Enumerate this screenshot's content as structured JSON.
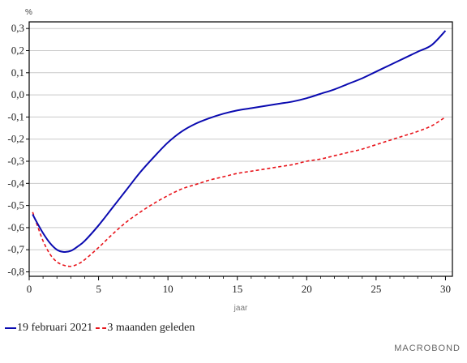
{
  "chart_data": {
    "type": "line",
    "title": "",
    "xlabel": "jaar",
    "ylabel": "%",
    "xlim": [
      0,
      30.5
    ],
    "ylim": [
      -0.82,
      0.33
    ],
    "x_ticks": [
      0,
      5,
      10,
      15,
      20,
      25,
      30
    ],
    "x_tick_labels": [
      "0",
      "5",
      "10",
      "15",
      "20",
      "25",
      "30"
    ],
    "y_ticks": [
      -0.8,
      -0.7,
      -0.6,
      -0.5,
      -0.4,
      -0.3,
      -0.2,
      -0.1,
      0.0,
      0.1,
      0.2,
      0.3
    ],
    "y_tick_labels": [
      "-0,8",
      "-0,7",
      "-0,6",
      "-0,5",
      "-0,4",
      "-0,3",
      "-0,2",
      "-0,1",
      "0,0",
      "0,1",
      "0,2",
      "0,3"
    ],
    "grid": true,
    "legend_position": "bottom-left",
    "series": [
      {
        "name": "19 februari 2021",
        "color": "#0a0ab0",
        "style": "solid",
        "x": [
          0.25,
          0.5,
          1,
          1.5,
          2,
          2.5,
          3,
          3.5,
          4,
          5,
          6,
          7,
          8,
          9,
          10,
          11,
          12,
          13,
          14,
          15,
          16,
          17,
          18,
          19,
          20,
          21,
          22,
          23,
          24,
          25,
          26,
          27,
          28,
          29,
          30
        ],
        "values": [
          -0.54,
          -0.57,
          -0.625,
          -0.67,
          -0.7,
          -0.71,
          -0.705,
          -0.685,
          -0.66,
          -0.59,
          -0.51,
          -0.43,
          -0.35,
          -0.28,
          -0.215,
          -0.165,
          -0.13,
          -0.105,
          -0.085,
          -0.07,
          -0.06,
          -0.05,
          -0.04,
          -0.03,
          -0.015,
          0.005,
          0.025,
          0.05,
          0.075,
          0.105,
          0.135,
          0.165,
          0.195,
          0.225,
          0.29
        ]
      },
      {
        "name": "3 maanden geleden",
        "color": "#e8141b",
        "style": "dashed",
        "x": [
          0.25,
          0.5,
          1,
          1.5,
          2,
          2.5,
          3,
          3.5,
          4,
          5,
          6,
          7,
          8,
          9,
          10,
          11,
          12,
          13,
          14,
          15,
          16,
          17,
          18,
          19,
          20,
          21,
          22,
          23,
          24,
          25,
          26,
          27,
          28,
          29,
          30
        ],
        "values": [
          -0.53,
          -0.575,
          -0.66,
          -0.72,
          -0.755,
          -0.77,
          -0.775,
          -0.765,
          -0.745,
          -0.69,
          -0.63,
          -0.575,
          -0.53,
          -0.49,
          -0.455,
          -0.425,
          -0.405,
          -0.385,
          -0.37,
          -0.355,
          -0.345,
          -0.335,
          -0.325,
          -0.315,
          -0.3,
          -0.29,
          -0.275,
          -0.26,
          -0.245,
          -0.225,
          -0.205,
          -0.185,
          -0.165,
          -0.14,
          -0.1
        ]
      }
    ]
  },
  "source_label": "MACROBOND"
}
